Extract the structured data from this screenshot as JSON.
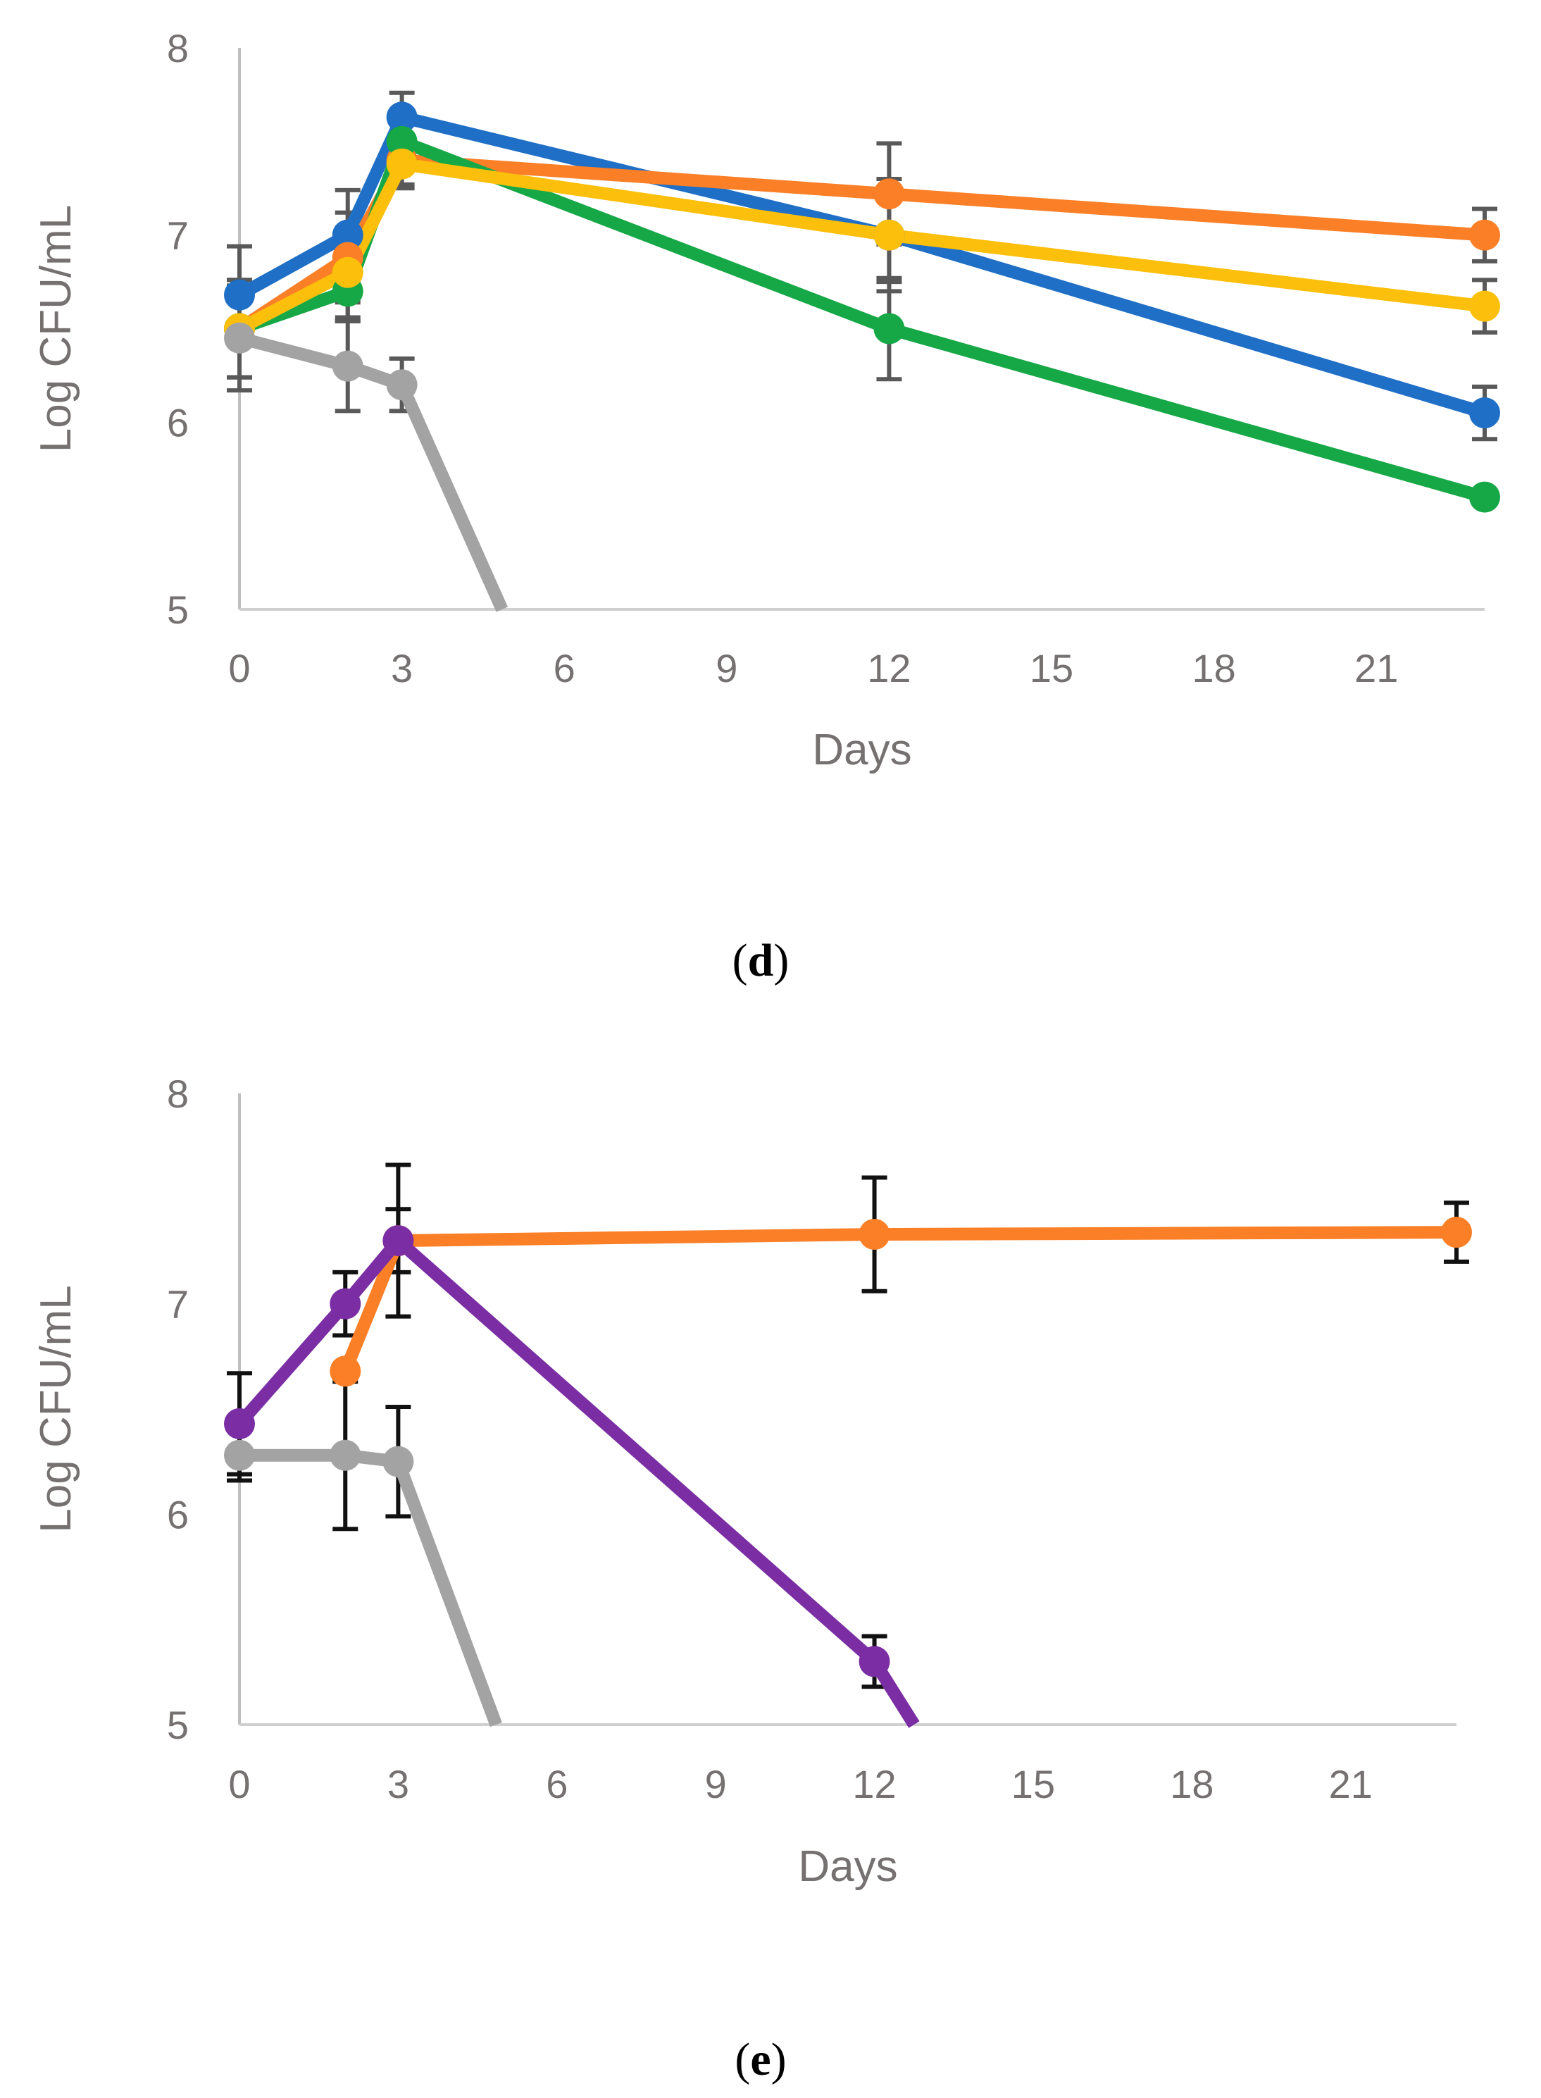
{
  "chart_data": [
    {
      "type": "line",
      "panel": "d",
      "panel_label_letter": "d",
      "xlabel": "Days",
      "ylabel": "Log CFU/mL",
      "xlim": [
        0,
        23
      ],
      "ylim": [
        5,
        8
      ],
      "xticks": [
        0,
        3,
        6,
        9,
        12,
        15,
        18,
        21
      ],
      "yticks": [
        5,
        6,
        7,
        8
      ],
      "series": [
        {
          "name": "blue",
          "color": "#1f6fc7",
          "points": [
            [
              0,
              6.68
            ],
            [
              2,
              7.0
            ],
            [
              3,
              7.63
            ],
            [
              12,
              7.0
            ],
            [
              23,
              6.05
            ]
          ],
          "errors": [
            0.26,
            0.24,
            0.13,
            0.3,
            0.14
          ]
        },
        {
          "name": "orange",
          "color": "#fa7f27",
          "points": [
            [
              0,
              6.5
            ],
            [
              2,
              6.88
            ],
            [
              3,
              7.4
            ],
            [
              12,
              7.22
            ],
            [
              23,
              7.0
            ]
          ],
          "errors": [
            0.26,
            0.24,
            0.13,
            0.27,
            0.14
          ]
        },
        {
          "name": "green",
          "color": "#16a846",
          "points": [
            [
              0,
              6.5
            ],
            [
              2,
              6.7
            ],
            [
              3,
              7.5
            ],
            [
              12,
              6.5
            ],
            [
              23,
              5.6
            ]
          ],
          "errors": [
            0.26,
            0.16,
            0.13,
            0.27,
            0.0
          ]
        },
        {
          "name": "yellow",
          "color": "#fbbf0c",
          "points": [
            [
              0,
              6.5
            ],
            [
              2,
              6.8
            ],
            [
              3,
              7.38
            ],
            [
              12,
              7.0
            ],
            [
              23,
              6.62
            ]
          ],
          "errors": [
            0.26,
            0.24,
            0.13,
            0.25,
            0.14
          ]
        },
        {
          "name": "gray",
          "color": "#a3a3a3",
          "points": [
            [
              0,
              6.45
            ],
            [
              2,
              6.3
            ],
            [
              3,
              6.2
            ],
            [
              4.85,
              5.0
            ]
          ],
          "errors": [
            0.28,
            0.24,
            0.14,
            null
          ]
        }
      ]
    },
    {
      "type": "line",
      "panel": "e",
      "panel_label_letter": "e",
      "xlabel": "Days",
      "ylabel": "Log CFU/mL",
      "xlim": [
        0,
        23
      ],
      "ylim": [
        5,
        8
      ],
      "xticks": [
        0,
        3,
        6,
        9,
        12,
        15,
        18,
        21
      ],
      "yticks": [
        5,
        6,
        7,
        8
      ],
      "series": [
        {
          "name": "gray",
          "color": "#a3a3a3",
          "points": [
            [
              0,
              6.28
            ],
            [
              2,
              6.28
            ],
            [
              3,
              6.25
            ],
            [
              4.85,
              5.0
            ]
          ],
          "errors": [
            0.12,
            0.35,
            0.26,
            null
          ]
        },
        {
          "name": "orange",
          "color": "#fa7f27",
          "points": [
            [
              2,
              6.68
            ],
            [
              3,
              7.3
            ],
            [
              12,
              7.33
            ],
            [
              23,
              7.34
            ]
          ],
          "errors": [
            0.0,
            0.36,
            0.27,
            0.14
          ]
        },
        {
          "name": "purple",
          "color": "#7b2ea3",
          "points": [
            [
              0,
              6.43
            ],
            [
              2,
              7.0
            ],
            [
              3,
              7.3
            ],
            [
              12,
              5.3
            ],
            [
              12.75,
              5.0
            ]
          ],
          "errors": [
            0.24,
            0.15,
            0.15,
            0.12,
            null
          ]
        }
      ]
    }
  ]
}
